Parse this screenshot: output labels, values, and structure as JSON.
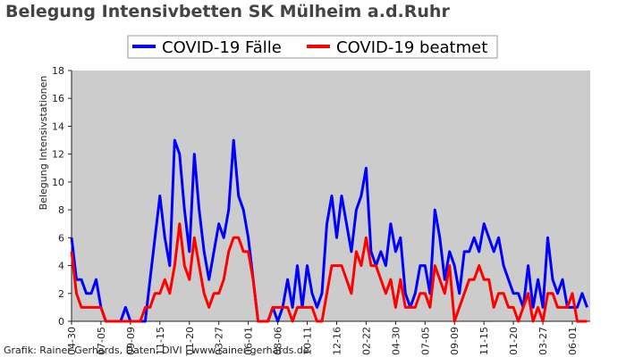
{
  "chart_data": {
    "type": "line",
    "title": "Belegung Intensivbetten SK Mülheim a.d.Ruhr",
    "y_label": "Belegung Intensivstationen",
    "footer": "Grafik: Rainer Gerhards, Daten: DIVI | www.rainer-gerhards.de",
    "categories": [
      "04-30",
      null,
      null,
      null,
      null,
      null,
      "07-05",
      null,
      null,
      null,
      null,
      null,
      "09-09",
      null,
      null,
      null,
      null,
      null,
      "11-15",
      null,
      null,
      null,
      null,
      null,
      "01-20",
      null,
      null,
      null,
      null,
      null,
      "03-27",
      null,
      null,
      null,
      null,
      null,
      "06-01",
      null,
      null,
      null,
      null,
      null,
      "08-06",
      null,
      null,
      null,
      null,
      null,
      "10-11",
      null,
      null,
      null,
      null,
      null,
      "12-16",
      null,
      null,
      null,
      null,
      null,
      "02-22",
      null,
      null,
      null,
      null,
      null,
      "04-30",
      null,
      null,
      null,
      null,
      null,
      "07-05",
      null,
      null,
      null,
      null,
      null,
      "09-09",
      null,
      null,
      null,
      null,
      null,
      "11-15",
      null,
      null,
      null,
      null,
      null,
      "01-20",
      null,
      null,
      null,
      null,
      null,
      "03-27",
      null,
      null,
      null,
      null,
      null,
      "06-01",
      null,
      null,
      null
    ],
    "series": [
      {
        "name": "COVID-19 Fälle",
        "color": "#0000ff",
        "values": [
          6,
          3,
          3,
          2,
          2,
          3,
          1,
          0,
          0,
          0,
          0,
          1,
          0,
          0,
          0,
          0,
          3,
          6,
          9,
          6,
          4,
          13,
          12,
          8,
          5,
          12,
          8,
          5,
          3,
          5,
          7,
          6,
          8,
          13,
          9,
          8,
          6,
          3,
          0,
          0,
          0,
          1,
          0,
          1,
          3,
          1,
          4,
          1,
          4,
          2,
          1,
          2,
          7,
          9,
          6,
          9,
          7,
          5,
          8,
          9,
          11,
          5,
          4,
          5,
          4,
          7,
          5,
          6,
          2,
          1,
          2,
          4,
          4,
          2,
          8,
          6,
          3,
          5,
          4,
          2,
          5,
          5,
          6,
          5,
          7,
          6,
          5,
          6,
          4,
          3,
          2,
          2,
          1,
          4,
          1,
          3,
          1,
          6,
          3,
          2,
          3,
          1,
          1,
          1,
          2,
          1
        ]
      },
      {
        "name": "COVID-19 beatmet",
        "color": "#ff0000",
        "values": [
          5,
          2,
          1,
          1,
          1,
          1,
          1,
          0,
          0,
          0,
          0,
          0,
          0,
          0,
          0,
          1,
          1,
          2,
          2,
          3,
          2,
          4,
          7,
          4,
          3,
          6,
          4,
          2,
          1,
          2,
          2,
          3,
          5,
          6,
          6,
          5,
          5,
          3,
          0,
          0,
          0,
          1,
          1,
          1,
          1,
          0,
          1,
          1,
          1,
          1,
          0,
          0,
          2,
          4,
          4,
          4,
          3,
          2,
          5,
          4,
          6,
          4,
          4,
          3,
          2,
          3,
          1,
          3,
          1,
          1,
          1,
          2,
          2,
          1,
          4,
          3,
          2,
          4,
          0,
          1,
          2,
          3,
          3,
          4,
          3,
          3,
          1,
          2,
          2,
          1,
          1,
          0,
          1,
          2,
          0,
          1,
          0,
          2,
          2,
          1,
          1,
          1,
          2,
          0,
          0,
          0
        ]
      }
    ],
    "ylim": [
      0,
      18
    ],
    "yticks": [
      0,
      2,
      4,
      6,
      8,
      10,
      12,
      14,
      16,
      18
    ],
    "grid": false
  }
}
